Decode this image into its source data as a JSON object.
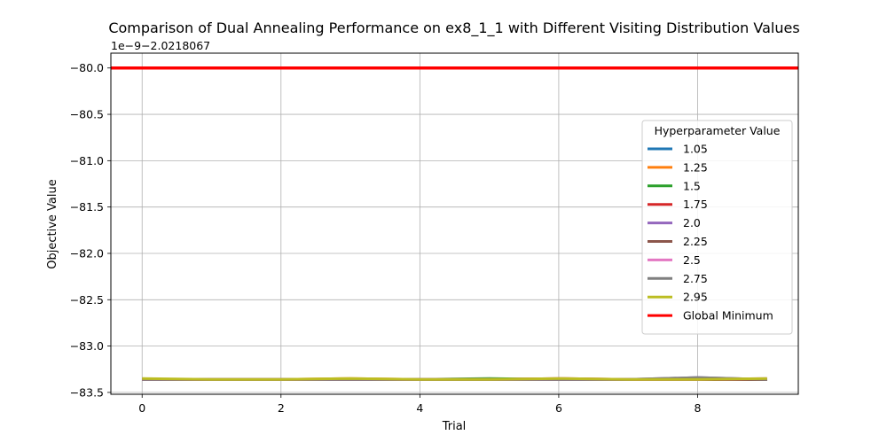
{
  "chart_data": {
    "type": "line",
    "title": "Comparison of Dual Annealing Performance on ex8_1_1 with Different Visiting Distribution Values",
    "xlabel": "Trial",
    "ylabel": "Objective Value",
    "offset_text": "1e−9−2.0218067",
    "x": [
      0,
      1,
      2,
      3,
      4,
      5,
      6,
      7,
      8,
      9
    ],
    "xlim": [
      -0.45,
      9.45
    ],
    "ylim": [
      -83.52,
      -79.84
    ],
    "xticks": [
      0,
      2,
      4,
      6,
      8
    ],
    "yticks": [
      -80.0,
      -80.5,
      -81.0,
      -81.5,
      -82.0,
      -82.5,
      -83.0,
      -83.5
    ],
    "grid": true,
    "legend": {
      "title": "Hyperparameter Value",
      "placement": "right"
    },
    "series": [
      {
        "name": "1.05",
        "color": "#1f77b4",
        "values": [
          -83.36,
          -83.36,
          -83.36,
          -83.36,
          -83.36,
          -83.36,
          -83.36,
          -83.36,
          -83.36,
          -83.36
        ]
      },
      {
        "name": "1.25",
        "color": "#ff7f0e",
        "values": [
          -83.36,
          -83.36,
          -83.36,
          -83.35,
          -83.36,
          -83.36,
          -83.36,
          -83.36,
          -83.36,
          -83.36
        ]
      },
      {
        "name": "1.5",
        "color": "#2ca02c",
        "values": [
          -83.36,
          -83.36,
          -83.36,
          -83.36,
          -83.36,
          -83.35,
          -83.36,
          -83.36,
          -83.36,
          -83.36
        ]
      },
      {
        "name": "1.75",
        "color": "#d62728",
        "values": [
          -83.36,
          -83.36,
          -83.36,
          -83.36,
          -83.36,
          -83.36,
          -83.35,
          -83.36,
          -83.36,
          -83.36
        ]
      },
      {
        "name": "2.0",
        "color": "#9467bd",
        "values": [
          -83.36,
          -83.36,
          -83.36,
          -83.36,
          -83.36,
          -83.36,
          -83.36,
          -83.36,
          -83.34,
          -83.36
        ]
      },
      {
        "name": "2.25",
        "color": "#8c564b",
        "values": [
          -83.36,
          -83.36,
          -83.36,
          -83.36,
          -83.36,
          -83.36,
          -83.36,
          -83.36,
          -83.36,
          -83.36
        ]
      },
      {
        "name": "2.5",
        "color": "#e377c2",
        "values": [
          -83.36,
          -83.36,
          -83.36,
          -83.36,
          -83.36,
          -83.36,
          -83.36,
          -83.36,
          -83.36,
          -83.35
        ]
      },
      {
        "name": "2.75",
        "color": "#7f7f7f",
        "values": [
          -83.36,
          -83.36,
          -83.36,
          -83.36,
          -83.36,
          -83.36,
          -83.36,
          -83.36,
          -83.34,
          -83.36
        ]
      },
      {
        "name": "2.95",
        "color": "#bcbd22",
        "values": [
          -83.35,
          -83.36,
          -83.36,
          -83.35,
          -83.36,
          -83.36,
          -83.35,
          -83.36,
          -83.36,
          -83.35
        ]
      }
    ],
    "reference_line": {
      "name": "Global Minimum",
      "color": "#ff0000",
      "value": -80.0
    }
  }
}
